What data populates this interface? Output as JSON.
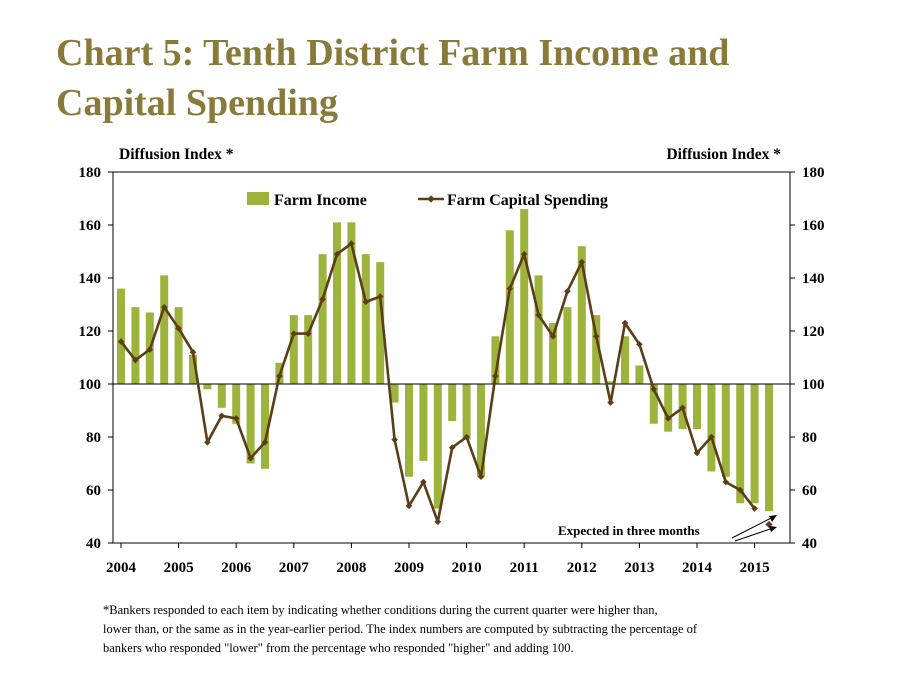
{
  "title": {
    "line1": "Chart 5: Tenth District Farm Income and",
    "line2": "Capital Spending"
  },
  "chart_data": {
    "type": "bar",
    "left_axis_label": "Diffusion Index *",
    "right_axis_label": "Diffusion Index *",
    "ylim": [
      40,
      180
    ],
    "baseline": 100,
    "y_ticks": [
      40,
      60,
      80,
      100,
      120,
      140,
      160,
      180
    ],
    "x_tick_labels": [
      "2004",
      "2005",
      "2006",
      "2007",
      "2008",
      "2009",
      "2010",
      "2011",
      "2012",
      "2013",
      "2014",
      "2015"
    ],
    "grid": false,
    "legend_position": "top-center",
    "colors": {
      "bar": "#9cb43c",
      "line": "#5c3d17",
      "axis": "#000000"
    },
    "series": [
      {
        "name": "Farm Income",
        "type": "bar",
        "values": [
          136,
          129,
          127,
          141,
          129,
          111,
          98,
          91,
          85,
          70,
          68,
          108,
          126,
          126,
          149,
          161,
          161,
          149,
          146,
          93,
          65,
          71,
          53,
          86,
          79,
          65,
          118,
          158,
          166,
          141,
          123,
          129,
          152,
          126,
          101,
          118,
          107,
          85,
          82,
          83,
          83,
          67,
          65,
          55,
          55
        ]
      },
      {
        "name": "Farm Capital Spending",
        "type": "line",
        "values": [
          116,
          109,
          113,
          129,
          121,
          112,
          78,
          88,
          87,
          72,
          78,
          103,
          119,
          119,
          132,
          149,
          153,
          131,
          133,
          79,
          54,
          63,
          48,
          76,
          80,
          65,
          103,
          136,
          149,
          126,
          118,
          135,
          146,
          118,
          93,
          123,
          115,
          98,
          87,
          91,
          74,
          80,
          63,
          60,
          53
        ]
      }
    ],
    "expected": {
      "label": "Expected in three months",
      "farm_income": 52,
      "farm_capital_spending": 47
    }
  },
  "footnote": {
    "line1": "*Bankers responded to each item by indicating whether conditions during the current quarter were higher than,",
    "line2": "lower than, or the same as in the year-earlier period.  The index numbers are computed by subtracting the percentage of",
    "line3": "bankers who responded \"lower\" from the percentage who responded \"higher\" and adding 100."
  }
}
